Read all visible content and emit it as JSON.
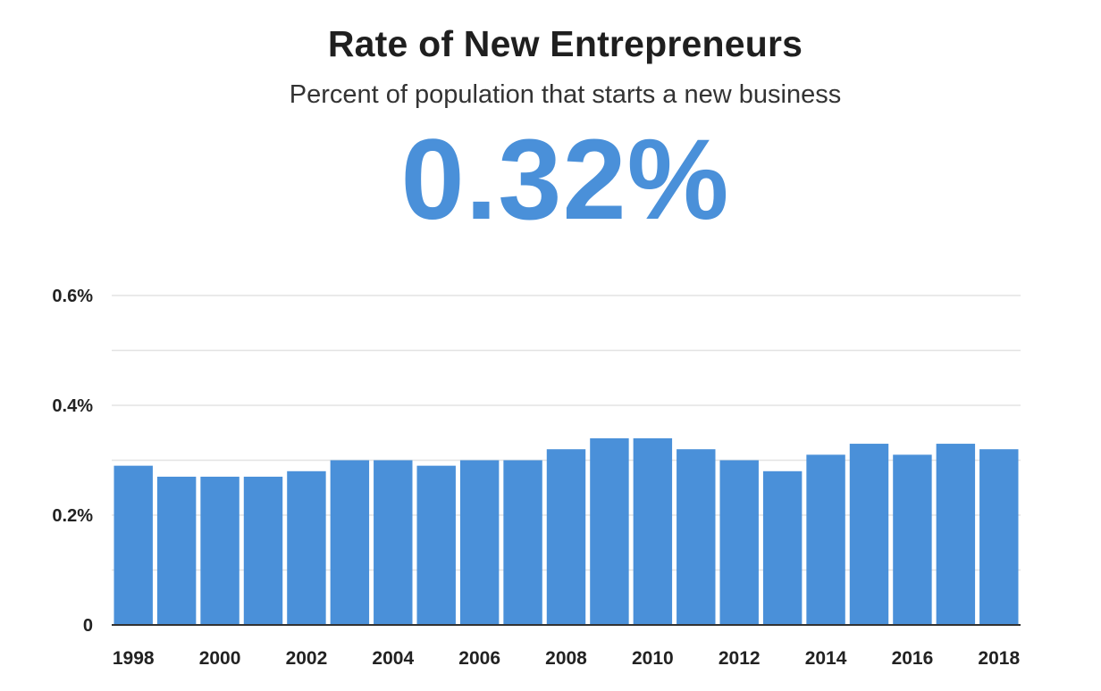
{
  "title": "Rate of New Entrepreneurs",
  "subtitle": "Percent of population that starts a new business",
  "headline_value": "0.32%",
  "colors": {
    "bar": "#4a90d9",
    "headline": "#4a90d9",
    "grid": "#e3e3e3",
    "axis": "#333333"
  },
  "chart_data": {
    "type": "bar",
    "title": "Rate of New Entrepreneurs",
    "subtitle": "Percent of population that starts a new business",
    "xlabel": "",
    "ylabel": "",
    "ylim": [
      0,
      0.6
    ],
    "grid": true,
    "y_ticks": [
      {
        "value": 0,
        "label": "0"
      },
      {
        "value": 0.2,
        "label": "0.2%"
      },
      {
        "value": 0.4,
        "label": "0.4%"
      },
      {
        "value": 0.6,
        "label": "0.6%"
      }
    ],
    "x_tick_labels": [
      "1998",
      "2000",
      "2002",
      "2004",
      "2006",
      "2008",
      "2010",
      "2012",
      "2014",
      "2016",
      "2018"
    ],
    "categories": [
      "1998",
      "1999",
      "2000",
      "2001",
      "2002",
      "2003",
      "2004",
      "2005",
      "2006",
      "2007",
      "2008",
      "2009",
      "2010",
      "2011",
      "2012",
      "2013",
      "2014",
      "2015",
      "2016",
      "2017",
      "2018"
    ],
    "values": [
      0.29,
      0.27,
      0.27,
      0.27,
      0.28,
      0.3,
      0.3,
      0.29,
      0.3,
      0.3,
      0.32,
      0.34,
      0.34,
      0.32,
      0.3,
      0.28,
      0.31,
      0.33,
      0.31,
      0.33,
      0.32
    ]
  }
}
